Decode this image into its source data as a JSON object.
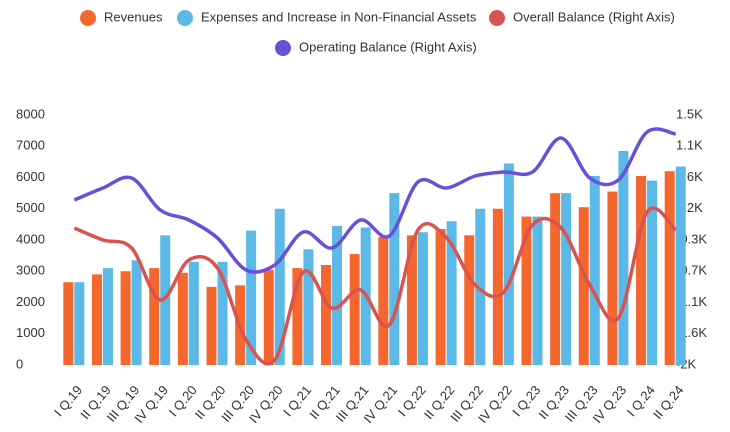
{
  "chart_data": {
    "type": "bar",
    "legend": "top",
    "categories": [
      "I Q.19",
      "II Q.19",
      "III Q.19",
      "IV Q.19",
      "I Q.20",
      "II Q.20",
      "III Q.20",
      "IV Q.20",
      "I Q.21",
      "II Q.21",
      "III Q.21",
      "IV Q.21",
      "I Q.22",
      "II Q.22",
      "III Q.22",
      "IV Q.22",
      "I Q.23",
      "II Q.23",
      "III Q.23",
      "IV Q.23",
      "I Q.24",
      "II Q.24"
    ],
    "ylim": [
      0,
      8000
    ],
    "yticks": [
      0,
      1000,
      2000,
      3000,
      4000,
      5000,
      6000,
      7000,
      8000
    ],
    "y2lim": [
      -2000,
      1500
    ],
    "y2ticks": [
      {
        "value": -2000,
        "label": "-2K"
      },
      {
        "value": -1562.5,
        "label": "-1.6K"
      },
      {
        "value": -1125,
        "label": "-1.1K"
      },
      {
        "value": -687.5,
        "label": "-0.7K"
      },
      {
        "value": -250,
        "label": "-0.3K"
      },
      {
        "value": 187.5,
        "label": "0.2K"
      },
      {
        "value": 625,
        "label": "0.6K"
      },
      {
        "value": 1062.5,
        "label": "1.1K"
      },
      {
        "value": 1500,
        "label": "1.5K"
      }
    ],
    "series": [
      {
        "name": "Revenues",
        "type": "bar",
        "color": "#f4672f",
        "values": [
          2650,
          2900,
          3000,
          3100,
          2950,
          2500,
          2550,
          3050,
          3100,
          3200,
          3550,
          4100,
          4150,
          4350,
          4150,
          5000,
          4750,
          5500,
          5050,
          5550,
          6050,
          6200
        ]
      },
      {
        "name": "Expenses and Increase in Non-Financial Assets",
        "type": "bar",
        "color": "#5cb8e6",
        "values": [
          2650,
          3100,
          3350,
          4150,
          3300,
          3300,
          4300,
          5000,
          3700,
          4450,
          4400,
          5500,
          4250,
          4600,
          5000,
          6450,
          4750,
          5500,
          6050,
          6850,
          5900,
          6350
        ]
      },
      {
        "name": "Overall Balance (Right Axis)",
        "type": "line",
        "axis": "y2",
        "color": "#d9534f",
        "values": [
          -82,
          -250,
          -362,
          -1090,
          -530,
          -642,
          -1650,
          -1930,
          -698,
          -1202,
          -950,
          -1440,
          -110,
          -222,
          -880,
          -978,
          -40,
          -82,
          -880,
          -1342,
          142,
          -110
        ]
      },
      {
        "name": "Operating Balance (Right Axis)",
        "type": "line",
        "axis": "y2",
        "color": "#6a4fd8",
        "values": [
          310,
          478,
          618,
          170,
          30,
          -222,
          -670,
          -600,
          -138,
          -362,
          30,
          -194,
          562,
          478,
          646,
          702,
          702,
          1178,
          618,
          590,
          1262,
          1234
        ]
      }
    ]
  }
}
